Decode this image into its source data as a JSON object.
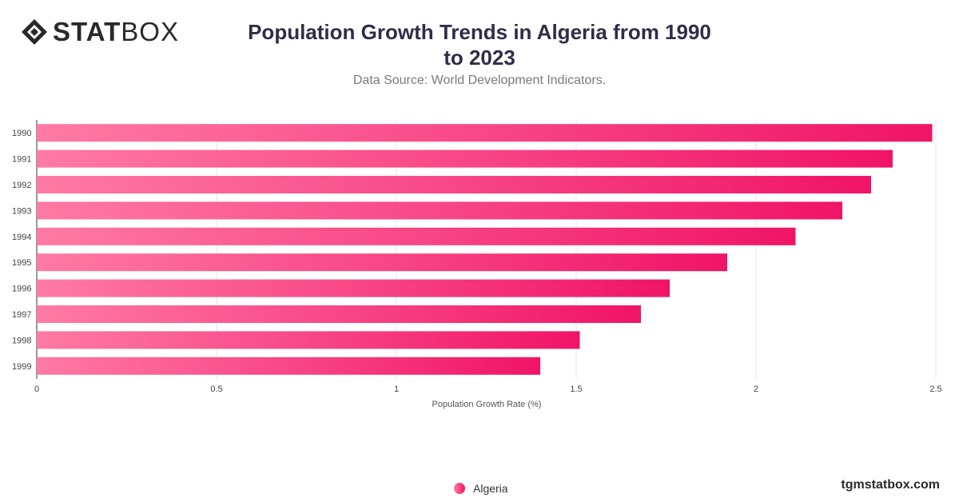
{
  "logo": {
    "bold": "STAT",
    "light": "BOX"
  },
  "watermark": "tgmstatbox.com",
  "chart_data": {
    "type": "bar",
    "orientation": "horizontal",
    "title": "Population Growth Trends in Algeria from 1990 to 2023",
    "subtitle": "Data Source: World Development Indicators.",
    "xlabel": "Population Growth Rate (%)",
    "ylabel": "",
    "xlim": [
      0,
      2.5
    ],
    "xticks": [
      "0",
      "0.5",
      "1",
      "1.5",
      "2",
      "2.5"
    ],
    "categories": [
      "1990",
      "1991",
      "1992",
      "1993",
      "1994",
      "1995",
      "1996",
      "1997",
      "1998",
      "1999"
    ],
    "series": [
      {
        "name": "Algeria",
        "values": [
          2.49,
          2.38,
          2.32,
          2.24,
          2.11,
          1.92,
          1.76,
          1.68,
          1.51,
          1.4
        ]
      }
    ],
    "grid": true,
    "legend_position": "bottom",
    "colors": {
      "bar_start": "#ff7aa5",
      "bar_end": "#f01466",
      "grid": "#e6e6e6"
    }
  }
}
